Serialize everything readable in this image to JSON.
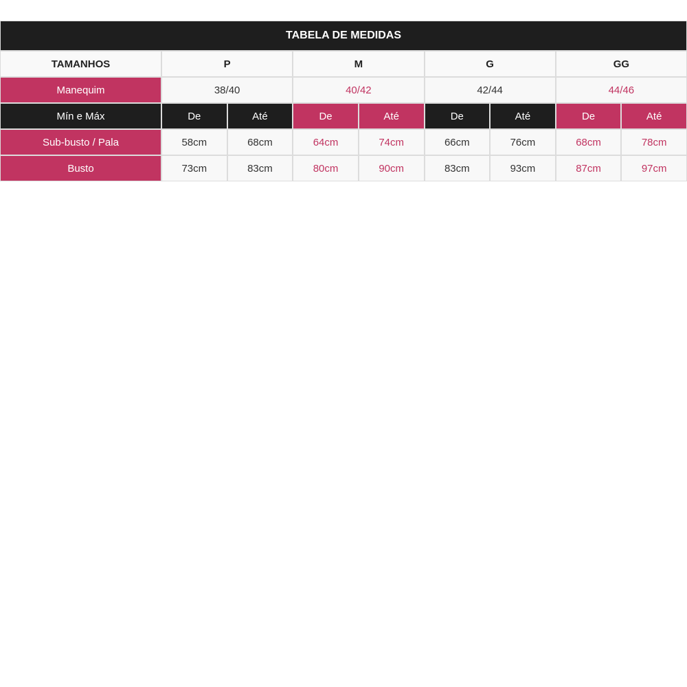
{
  "title": "TABELA DE MEDIDAS",
  "sizes_label": "TAMANHOS",
  "sizes": [
    "P",
    "M",
    "G",
    "GG"
  ],
  "mannequin_label": "Manequim",
  "mannequin": [
    "38/40",
    "40/42",
    "42/44",
    "44/46"
  ],
  "minmax_label": "Mín e Máx",
  "from_label": "De",
  "to_label": "Até",
  "rows": [
    {
      "label": "Sub-busto / Pala",
      "values": [
        "58cm",
        "68cm",
        "64cm",
        "74cm",
        "66cm",
        "76cm",
        "68cm",
        "78cm"
      ]
    },
    {
      "label": "Busto",
      "values": [
        "73cm",
        "83cm",
        "80cm",
        "90cm",
        "83cm",
        "93cm",
        "87cm",
        "97cm"
      ]
    }
  ],
  "colors": {
    "accent": "#c13461",
    "dark": "#1e1e1e"
  }
}
